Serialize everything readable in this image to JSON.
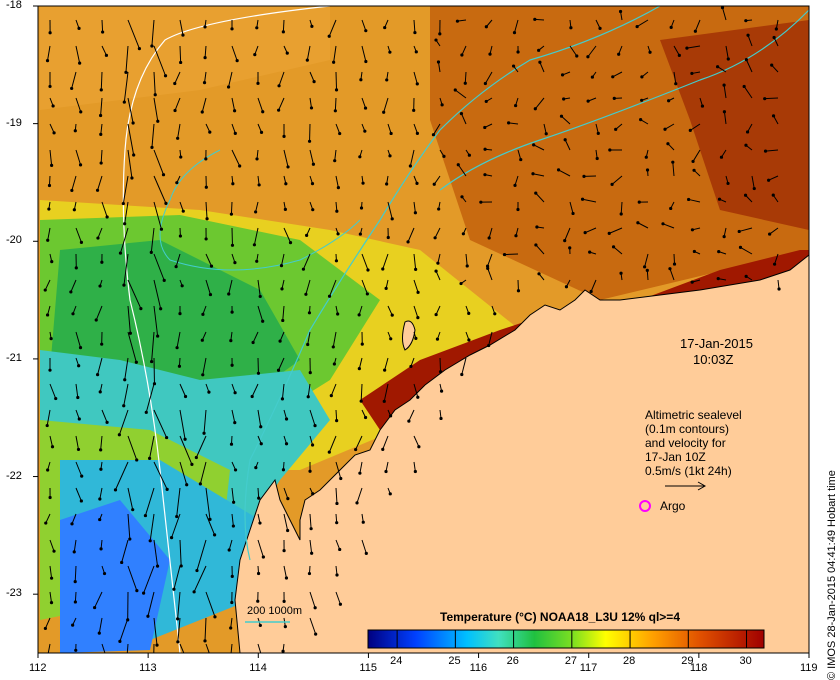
{
  "map": {
    "lon_min": 112,
    "lon_max": 119,
    "lat_min": -23.5,
    "lat_max": -18,
    "x_ticks": [
      "112",
      "113",
      "114",
      "115",
      "116",
      "117",
      "118",
      "119"
    ],
    "y_ticks": [
      "-18",
      "-19",
      "-20",
      "-21",
      "-22",
      "-23"
    ],
    "date": "17-Jan-2015",
    "time": "10:03Z",
    "land_color": "#ffcc99",
    "contour_color": "#44cccc"
  },
  "legend": {
    "altimetry_lines": [
      "Altimetric sealevel",
      "(0.1m contours)",
      "and velocity for",
      "17-Jan 10Z",
      "0.5m/s (1kt 24h)"
    ],
    "argo_label": "Argo",
    "argo_color": "#ff00ff",
    "depth_label": "200  1000m"
  },
  "colorbar": {
    "title": "Temperature (°C) NOAA18_L3U 12% ql>=4",
    "min": 23.5,
    "max": 30.3,
    "ticks": [
      "24",
      "25",
      "26",
      "27",
      "28",
      "29",
      "30"
    ]
  },
  "credit": "© IMOS 28-Jan-2015 04:41:49 Hobart time"
}
